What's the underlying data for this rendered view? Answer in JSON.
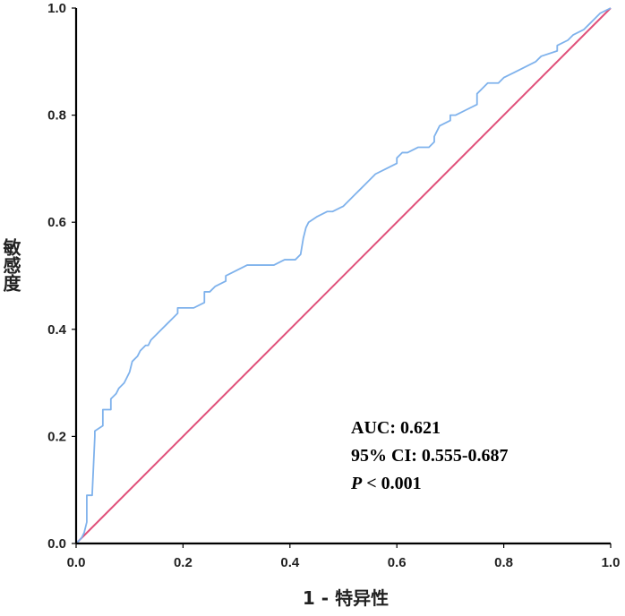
{
  "chart_data": {
    "type": "line",
    "title": "",
    "xlabel": "1 - 特异性",
    "ylabel": "敏感度",
    "xlim": [
      0.0,
      1.0
    ],
    "ylim": [
      0.0,
      1.0
    ],
    "xticks": [
      "0.0",
      "0.2",
      "0.4",
      "0.6",
      "0.8",
      "1.0"
    ],
    "yticks": [
      "0.0",
      "0.2",
      "0.4",
      "0.6",
      "0.8",
      "1.0"
    ],
    "grid": false,
    "legend": "none",
    "colors": {
      "roc": "#7fb2ec",
      "reference": "#e0507a",
      "axis": "#000000"
    },
    "series": [
      {
        "x": [
          0.0,
          0.01,
          0.015,
          0.02,
          0.02,
          0.03,
          0.035,
          0.035,
          0.05,
          0.05,
          0.065,
          0.065,
          0.075,
          0.08,
          0.09,
          0.1,
          0.105,
          0.115,
          0.12,
          0.13,
          0.135,
          0.14,
          0.15,
          0.16,
          0.17,
          0.18,
          0.19,
          0.19,
          0.2,
          0.22,
          0.24,
          0.24,
          0.25,
          0.26,
          0.28,
          0.28,
          0.3,
          0.32,
          0.33,
          0.35,
          0.37,
          0.39,
          0.41,
          0.42,
          0.425,
          0.43,
          0.435,
          0.45,
          0.47,
          0.48,
          0.5,
          0.51,
          0.52,
          0.53,
          0.54,
          0.55,
          0.56,
          0.58,
          0.6,
          0.6,
          0.61,
          0.62,
          0.64,
          0.66,
          0.67,
          0.67,
          0.68,
          0.7,
          0.7,
          0.71,
          0.73,
          0.75,
          0.75,
          0.76,
          0.77,
          0.79,
          0.8,
          0.82,
          0.84,
          0.86,
          0.87,
          0.9,
          0.9,
          0.92,
          0.93,
          0.95,
          0.96,
          0.97,
          0.98,
          1.0
        ],
        "y": [
          0.0,
          0.01,
          0.02,
          0.04,
          0.09,
          0.09,
          0.2,
          0.21,
          0.22,
          0.25,
          0.25,
          0.27,
          0.28,
          0.29,
          0.3,
          0.32,
          0.34,
          0.35,
          0.36,
          0.37,
          0.37,
          0.38,
          0.39,
          0.4,
          0.41,
          0.42,
          0.43,
          0.44,
          0.44,
          0.44,
          0.45,
          0.47,
          0.47,
          0.48,
          0.49,
          0.5,
          0.51,
          0.52,
          0.52,
          0.52,
          0.52,
          0.53,
          0.53,
          0.54,
          0.57,
          0.59,
          0.6,
          0.61,
          0.62,
          0.62,
          0.63,
          0.64,
          0.65,
          0.66,
          0.67,
          0.68,
          0.69,
          0.7,
          0.71,
          0.72,
          0.73,
          0.73,
          0.74,
          0.74,
          0.75,
          0.76,
          0.78,
          0.79,
          0.8,
          0.8,
          0.81,
          0.82,
          0.84,
          0.85,
          0.86,
          0.86,
          0.87,
          0.88,
          0.89,
          0.9,
          0.91,
          0.92,
          0.93,
          0.94,
          0.95,
          0.96,
          0.97,
          0.98,
          0.99,
          1.0
        ]
      },
      {
        "x": [
          0.0,
          1.0
        ],
        "y": [
          0.0,
          1.0
        ]
      }
    ],
    "annotations": {
      "auc": "AUC: 0.621",
      "ci": "95% CI: 0.555-0.687",
      "p_letter": "P",
      "p_rest": " < 0.001"
    }
  }
}
